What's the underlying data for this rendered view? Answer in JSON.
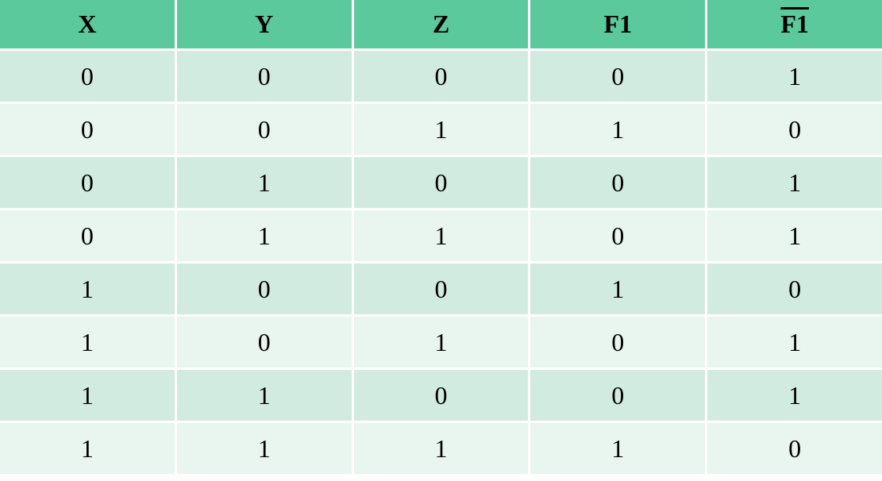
{
  "table": {
    "headers": [
      "X",
      "Y",
      "Z",
      "F1",
      "F1"
    ],
    "header_overline": [
      false,
      false,
      false,
      false,
      true
    ],
    "rows": [
      [
        "0",
        "0",
        "0",
        "0",
        "1"
      ],
      [
        "0",
        "0",
        "1",
        "1",
        "0"
      ],
      [
        "0",
        "1",
        "0",
        "0",
        "1"
      ],
      [
        "0",
        "1",
        "1",
        "0",
        "1"
      ],
      [
        "1",
        "0",
        "0",
        "1",
        "0"
      ],
      [
        "1",
        "0",
        "1",
        "0",
        "1"
      ],
      [
        "1",
        "1",
        "0",
        "0",
        "1"
      ],
      [
        "1",
        "1",
        "1",
        "1",
        "0"
      ]
    ]
  },
  "colors": {
    "header_bg": "#5bc99c",
    "row_odd_bg": "#d2ebe0",
    "row_even_bg": "#e9f5ef"
  }
}
